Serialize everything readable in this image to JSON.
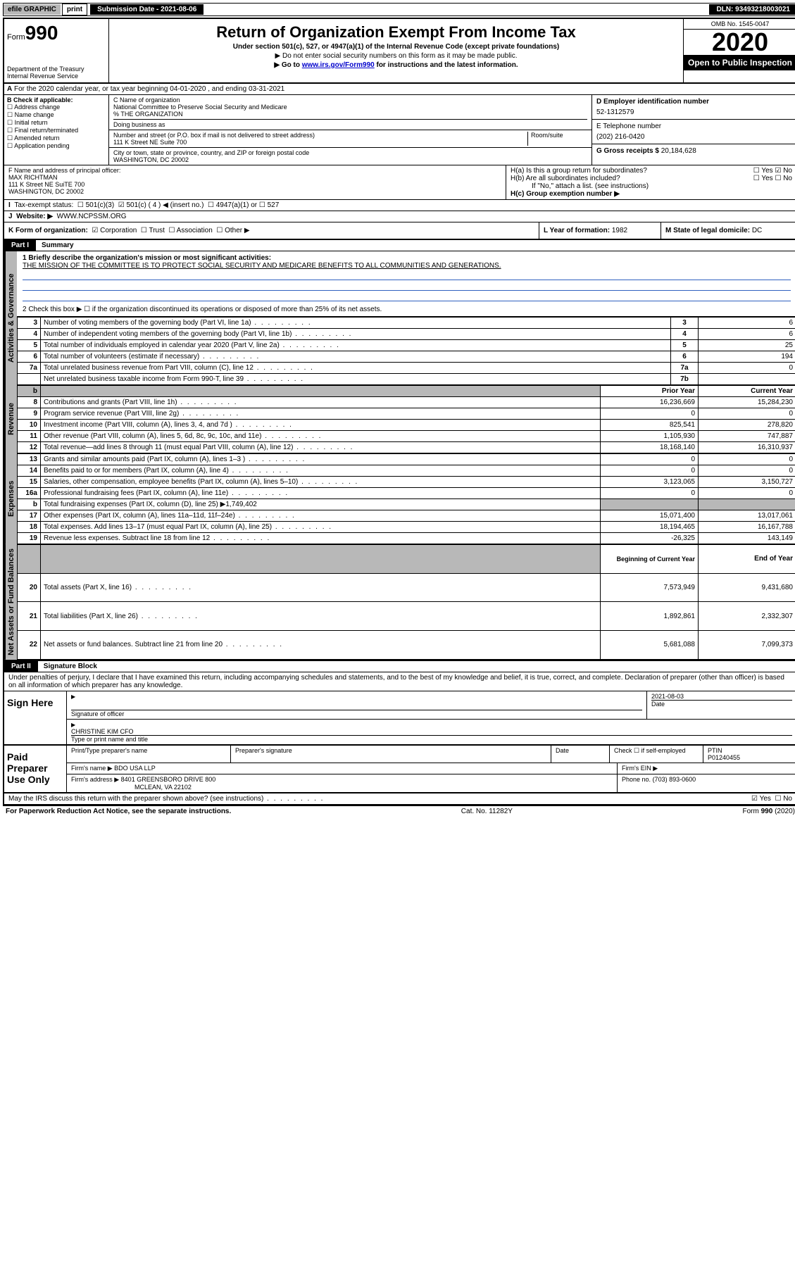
{
  "top": {
    "efile": "efile GRAPHIC",
    "print": "print",
    "submission": "Submission Date - 2021-08-06",
    "dln": "DLN: 93493218003021"
  },
  "header": {
    "form_prefix": "Form",
    "form_num": "990",
    "dept1": "Department of the Treasury",
    "dept2": "Internal Revenue Service",
    "title": "Return of Organization Exempt From Income Tax",
    "sub": "Under section 501(c), 527, or 4947(a)(1) of the Internal Revenue Code (except private foundations)",
    "note1": "▶ Do not enter social security numbers on this form as it may be made public.",
    "note2_pre": "▶ Go to ",
    "note2_link": "www.irs.gov/Form990",
    "note2_post": " for instructions and the latest information.",
    "omb": "OMB No. 1545-0047",
    "year": "2020",
    "open": "Open to Public Inspection"
  },
  "rowA": "For the 2020 calendar year, or tax year beginning 04-01-2020    , and ending 03-31-2021",
  "boxB": {
    "label": "B Check if applicable:",
    "items": [
      "Address change",
      "Name change",
      "Initial return",
      "Final return/terminated",
      "Amended return",
      "Application pending"
    ]
  },
  "boxC": {
    "name_lbl": "C Name of organization",
    "name": "National Committee to Preserve Social Security and Medicare",
    "care": "% THE ORGANIZATION",
    "dba_lbl": "Doing business as",
    "addr_lbl": "Number and street (or P.O. box if mail is not delivered to street address)",
    "room_lbl": "Room/suite",
    "addr": "111 K Street NE Suite 700",
    "city_lbl": "City or town, state or province, country, and ZIP or foreign postal code",
    "city": "WASHINGTON, DC  20002"
  },
  "boxD": {
    "lbl": "D Employer identification number",
    "val": "52-1312579"
  },
  "boxE": {
    "lbl": "E Telephone number",
    "val": "(202) 216-0420"
  },
  "boxG": {
    "lbl": "G Gross receipts $",
    "val": "20,184,628"
  },
  "boxF": {
    "lbl": "F  Name and address of principal officer:",
    "name": "MAX RICHTMAN",
    "addr1": "111 K Street NE SuiTE 700",
    "addr2": "WASHINGTON, DC  20002"
  },
  "boxH": {
    "ha": "H(a)  Is this a group return for subordinates?",
    "ha_yes": "Yes",
    "ha_no": "No",
    "hb": "H(b)  Are all subordinates included?",
    "hb_yes": "Yes",
    "hb_no": "No",
    "hb_note": "If \"No,\" attach a list. (see instructions)",
    "hc": "H(c)  Group exemption number ▶"
  },
  "rowI": {
    "lbl": "Tax-exempt status:",
    "o1": "501(c)(3)",
    "o2": "501(c) ( 4 ) ◀ (insert no.)",
    "o3": "4947(a)(1) or",
    "o4": "527"
  },
  "rowJ": {
    "lbl": "Website: ▶",
    "val": "WWW.NCPSSM.ORG"
  },
  "rowK": {
    "lbl": "K Form of organization:",
    "o1": "Corporation",
    "o2": "Trust",
    "o3": "Association",
    "o4": "Other ▶"
  },
  "rowL": {
    "lbl": "L Year of formation:",
    "val": "1982"
  },
  "rowM": {
    "lbl": "M State of legal domicile:",
    "val": "DC"
  },
  "part1": {
    "hdr": "Part I",
    "title": "Summary"
  },
  "summary": {
    "q1_lbl": "1  Briefly describe the organization's mission or most significant activities:",
    "q1_val": "THE MISSION OF THE COMMITTEE IS TO PROTECT SOCIAL SECURITY AND MEDICARE BENEFITS TO ALL COMMUNITIES AND GENERATIONS.",
    "q2": "2   Check this box ▶ ☐  if the organization discontinued its operations or disposed of more than 25% of its net assets."
  },
  "gov_rows": [
    {
      "n": "3",
      "t": "Number of voting members of the governing body (Part VI, line 1a)",
      "c": "3",
      "v": "6"
    },
    {
      "n": "4",
      "t": "Number of independent voting members of the governing body (Part VI, line 1b)",
      "c": "4",
      "v": "6"
    },
    {
      "n": "5",
      "t": "Total number of individuals employed in calendar year 2020 (Part V, line 2a)",
      "c": "5",
      "v": "25"
    },
    {
      "n": "6",
      "t": "Total number of volunteers (estimate if necessary)",
      "c": "6",
      "v": "194"
    },
    {
      "n": "7a",
      "t": "Total unrelated business revenue from Part VIII, column (C), line 12",
      "c": "7a",
      "v": "0"
    },
    {
      "n": "",
      "t": "Net unrelated business taxable income from Form 990-T, line 39",
      "c": "7b",
      "v": ""
    }
  ],
  "rev_hdr": {
    "b": "b",
    "py": "Prior Year",
    "cy": "Current Year"
  },
  "rev_rows": [
    {
      "n": "8",
      "t": "Contributions and grants (Part VIII, line 1h)",
      "py": "16,236,669",
      "cy": "15,284,230"
    },
    {
      "n": "9",
      "t": "Program service revenue (Part VIII, line 2g)",
      "py": "0",
      "cy": "0"
    },
    {
      "n": "10",
      "t": "Investment income (Part VIII, column (A), lines 3, 4, and 7d )",
      "py": "825,541",
      "cy": "278,820"
    },
    {
      "n": "11",
      "t": "Other revenue (Part VIII, column (A), lines 5, 6d, 8c, 9c, 10c, and 11e)",
      "py": "1,105,930",
      "cy": "747,887"
    },
    {
      "n": "12",
      "t": "Total revenue—add lines 8 through 11 (must equal Part VIII, column (A), line 12)",
      "py": "18,168,140",
      "cy": "16,310,937"
    }
  ],
  "exp_rows": [
    {
      "n": "13",
      "t": "Grants and similar amounts paid (Part IX, column (A), lines 1–3 )",
      "py": "0",
      "cy": "0"
    },
    {
      "n": "14",
      "t": "Benefits paid to or for members (Part IX, column (A), line 4)",
      "py": "0",
      "cy": "0"
    },
    {
      "n": "15",
      "t": "Salaries, other compensation, employee benefits (Part IX, column (A), lines 5–10)",
      "py": "3,123,065",
      "cy": "3,150,727"
    },
    {
      "n": "16a",
      "t": "Professional fundraising fees (Part IX, column (A), line 11e)",
      "py": "0",
      "cy": "0"
    },
    {
      "n": "b",
      "t": "Total fundraising expenses (Part IX, column (D), line 25) ▶1,749,402",
      "py": "",
      "cy": "",
      "gray": true
    },
    {
      "n": "17",
      "t": "Other expenses (Part IX, column (A), lines 11a–11d, 11f–24e)",
      "py": "15,071,400",
      "cy": "13,017,061"
    },
    {
      "n": "18",
      "t": "Total expenses. Add lines 13–17 (must equal Part IX, column (A), line 25)",
      "py": "18,194,465",
      "cy": "16,167,788"
    },
    {
      "n": "19",
      "t": "Revenue less expenses. Subtract line 18 from line 12",
      "py": "-26,325",
      "cy": "143,149"
    }
  ],
  "na_hdr": {
    "py": "Beginning of Current Year",
    "cy": "End of Year"
  },
  "na_rows": [
    {
      "n": "20",
      "t": "Total assets (Part X, line 16)",
      "py": "7,573,949",
      "cy": "9,431,680"
    },
    {
      "n": "21",
      "t": "Total liabilities (Part X, line 26)",
      "py": "1,892,861",
      "cy": "2,332,307"
    },
    {
      "n": "22",
      "t": "Net assets or fund balances. Subtract line 21 from line 20",
      "py": "5,681,088",
      "cy": "7,099,373"
    }
  ],
  "part2": {
    "hdr": "Part II",
    "title": "Signature Block"
  },
  "penalty": "Under penalties of perjury, I declare that I have examined this return, including accompanying schedules and statements, and to the best of my knowledge and belief, it is true, correct, and complete. Declaration of preparer (other than officer) is based on all information of which preparer has any knowledge.",
  "sign": {
    "left": "Sign Here",
    "date": "2021-08-03",
    "sig_lbl": "Signature of officer",
    "date_lbl": "Date",
    "name": "CHRISTINE KIM CFO",
    "name_lbl": "Type or print name and title"
  },
  "paid": {
    "left": "Paid Preparer Use Only",
    "h1": "Print/Type preparer's name",
    "h2": "Preparer's signature",
    "h3": "Date",
    "h4_chk": "Check ☐ if self-employed",
    "h5_lbl": "PTIN",
    "h5_val": "P01240455",
    "firm_lbl": "Firm's name    ▶",
    "firm_val": "BDO USA LLP",
    "ein_lbl": "Firm's EIN ▶",
    "addr_lbl": "Firm's address ▶",
    "addr_val1": "8401 GREENSBORO DRIVE 800",
    "addr_val2": "MCLEAN, VA  22102",
    "phone_lbl": "Phone no.",
    "phone_val": "(703) 893-0600"
  },
  "discuss": {
    "q": "May the IRS discuss this return with the preparer shown above? (see instructions)",
    "yes": "Yes",
    "no": "No"
  },
  "footer": {
    "l": "For Paperwork Reduction Act Notice, see the separate instructions.",
    "m": "Cat. No. 11282Y",
    "r": "Form 990 (2020)"
  },
  "tabs": {
    "gov": "Activities & Governance",
    "rev": "Revenue",
    "exp": "Expenses",
    "na": "Net Assets or Fund Balances"
  }
}
